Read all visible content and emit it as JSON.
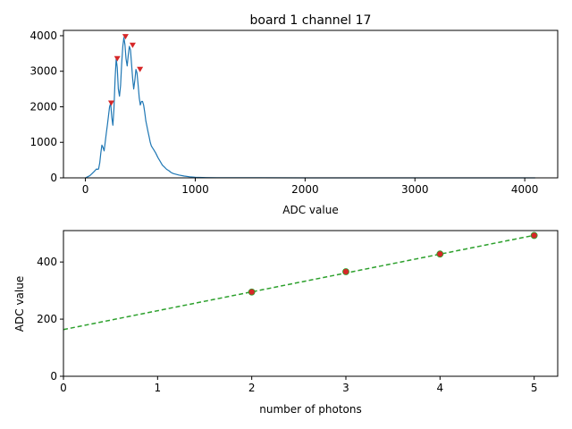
{
  "chart_data": [
    {
      "type": "line",
      "title": "board 1 channel 17",
      "xlabel": "ADC value",
      "ylabel": "",
      "xlim": [
        -200,
        4300
      ],
      "ylim": [
        0,
        4150
      ],
      "xticks": [
        0,
        1000,
        2000,
        3000,
        4000
      ],
      "yticks": [
        0,
        1000,
        2000,
        3000,
        4000
      ],
      "grid": false,
      "colors": {
        "line": "#1f77b4",
        "peaks": "#d62728"
      },
      "series": [
        {
          "x": [
            0,
            20,
            40,
            60,
            80,
            100,
            110,
            120,
            130,
            140,
            150,
            160,
            170,
            180,
            190,
            200,
            210,
            220,
            230,
            240,
            250,
            260,
            270,
            280,
            290,
            300,
            310,
            320,
            330,
            340,
            350,
            360,
            370,
            380,
            390,
            400,
            410,
            420,
            430,
            440,
            450,
            460,
            470,
            480,
            490,
            500,
            510,
            520,
            530,
            540,
            550,
            560,
            570,
            580,
            590,
            600,
            610,
            620,
            640,
            660,
            680,
            700,
            720,
            740,
            760,
            780,
            800,
            850,
            900,
            950,
            1000,
            1100,
            1200,
            1400,
            1600,
            2000,
            2500,
            3000,
            3500,
            4000,
            4095
          ],
          "y": [
            0,
            30,
            60,
            120,
            180,
            250,
            240,
            250,
            420,
            700,
            920,
            860,
            760,
            1000,
            1250,
            1500,
            1750,
            2000,
            2100,
            1700,
            1480,
            1950,
            2800,
            3350,
            3100,
            2500,
            2300,
            2600,
            3200,
            3700,
            3950,
            3750,
            3350,
            3150,
            3450,
            3700,
            3600,
            3200,
            2800,
            2500,
            2750,
            3050,
            2950,
            2600,
            2250,
            2050,
            2150,
            2150,
            2050,
            1850,
            1600,
            1450,
            1300,
            1150,
            1000,
            900,
            850,
            800,
            700,
            570,
            470,
            360,
            300,
            240,
            200,
            150,
            120,
            80,
            50,
            30,
            15,
            8,
            5,
            3,
            2,
            1,
            1,
            1,
            1,
            1,
            1
          ]
        }
      ],
      "peaks": {
        "x": [
          235,
          290,
          365,
          430,
          497
        ],
        "y": [
          2100,
          3350,
          3970,
          3730,
          3050
        ]
      }
    },
    {
      "type": "scatter",
      "title": "",
      "xlabel": "number of photons",
      "ylabel": "ADC value",
      "xlim": [
        0,
        5.25
      ],
      "ylim": [
        0,
        510
      ],
      "xticks": [
        0,
        1,
        2,
        3,
        4,
        5
      ],
      "yticks": [
        0,
        200,
        400
      ],
      "grid": false,
      "colors": {
        "points": "#d62728",
        "point_edge": "#2ca02c",
        "fit": "#2ca02c"
      },
      "series": [
        {
          "x": [
            2,
            3,
            4,
            5
          ],
          "y": [
            295,
            366,
            428,
            493
          ]
        }
      ],
      "fit_line": {
        "intercept": 163.5,
        "slope": 66.0,
        "style": "dashed"
      }
    }
  ]
}
